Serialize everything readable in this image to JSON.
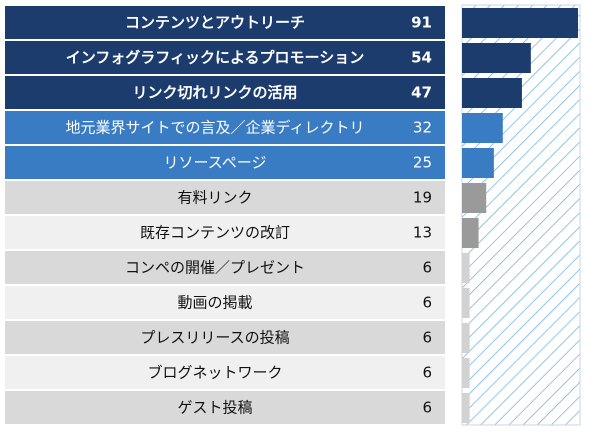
{
  "chart_data": {
    "type": "bar",
    "orientation": "horizontal",
    "categories": [
      "コンテンツとアウトリーチ",
      "インフォグラフィックによるプロモーション",
      "リンク切れリンクの活用",
      "地元業界サイトでの言及／企業ディレクトリ",
      "リソースページ",
      "有料リンク",
      "既存コンテンツの改訂",
      "コンペの開催／プレゼント",
      "動画の掲載",
      "プレスリリースの投稿",
      "ブログネットワーク",
      "ゲスト投稿"
    ],
    "values": [
      91,
      54,
      47,
      32,
      25,
      19,
      13,
      6,
      6,
      6,
      6,
      6
    ],
    "colors": [
      "#1d3c6e",
      "#1d3c6e",
      "#1d3c6e",
      "#3a7cc4",
      "#3a7cc4",
      "#9a9a9a",
      "#9a9a9a",
      "#d2d2d2",
      "#d2d2d2",
      "#d2d2d2",
      "#d2d2d2",
      "#d2d2d2"
    ]
  }
}
